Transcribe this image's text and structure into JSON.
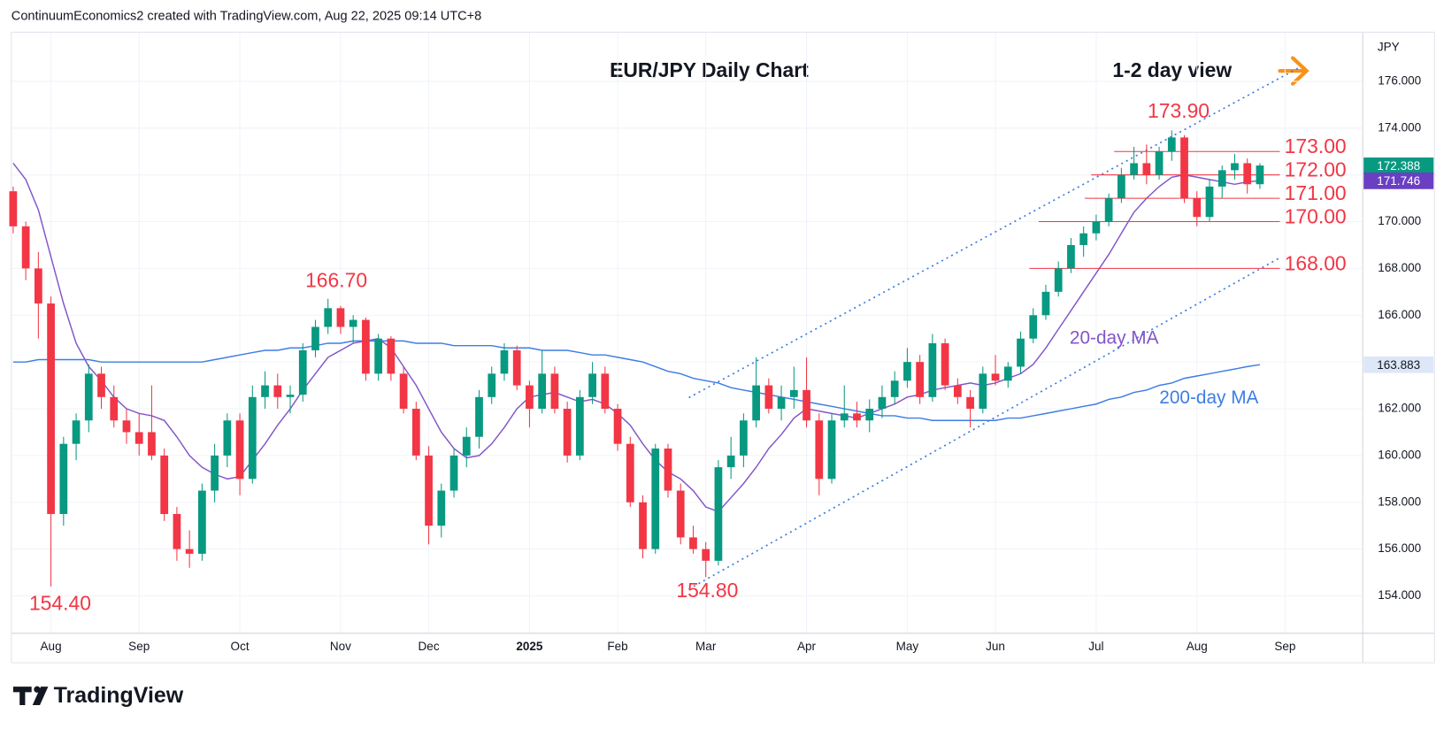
{
  "header": {
    "text": "ContinuumEconomics2 created with TradingView.com, Aug 22, 2025 09:14 UTC+8"
  },
  "brand": "TradingView",
  "chart_data": {
    "type": "candlestick",
    "title": "EUR/JPY Daily Chart",
    "subtitle": "1-2 day view",
    "y_axis_label": "JPY",
    "categories": [
      null,
      null,
      null,
      "Aug",
      null,
      null,
      null,
      null,
      null,
      null,
      "Sep",
      null,
      null,
      null,
      null,
      null,
      null,
      null,
      "Oct",
      null,
      null,
      null,
      null,
      null,
      null,
      null,
      "Nov",
      null,
      null,
      null,
      null,
      null,
      null,
      "Dec",
      null,
      null,
      null,
      null,
      null,
      null,
      null,
      "2025",
      null,
      null,
      null,
      null,
      null,
      null,
      "Feb",
      null,
      null,
      null,
      null,
      null,
      null,
      "Mar",
      null,
      null,
      null,
      null,
      null,
      null,
      null,
      "Apr",
      null,
      null,
      null,
      null,
      null,
      null,
      null,
      "May",
      null,
      null,
      null,
      null,
      null,
      null,
      "Jun",
      null,
      null,
      null,
      null,
      null,
      null,
      null,
      "Jul",
      null,
      null,
      null,
      null,
      null,
      null,
      null,
      "Aug",
      null,
      null,
      null,
      null,
      null,
      null,
      "Sep"
    ],
    "open": [
      171.3,
      169.8,
      168.0,
      166.5,
      157.5,
      160.5,
      161.5,
      163.5,
      162.5,
      161.5,
      161.0,
      161.0,
      160.0,
      157.5,
      156.0,
      155.8,
      158.5,
      160.0,
      161.5,
      159.0,
      162.5,
      163.0,
      162.5,
      162.6,
      164.5,
      165.5,
      166.3,
      165.5,
      165.8,
      163.5,
      165.0,
      163.5,
      162.0,
      160.0,
      157.0,
      158.5,
      160.0,
      160.8,
      162.5,
      163.5,
      164.5,
      163.0,
      162.0,
      163.5,
      162.0,
      160.0,
      162.5,
      163.5,
      162.0,
      160.5,
      158.0,
      156.0,
      160.3,
      158.5,
      156.5,
      156.0,
      155.5,
      159.5,
      160.0,
      161.5,
      163.0,
      162.0,
      162.5,
      162.8,
      161.5,
      159.0,
      161.5,
      161.8,
      161.5,
      162.0,
      162.5,
      163.2,
      164.0,
      162.5,
      164.8,
      163.0,
      162.5,
      162.0,
      163.5,
      163.2,
      163.8,
      165.0,
      166.0,
      167.0,
      168.0,
      169.0,
      169.5,
      170.0,
      171.0,
      172.0,
      172.5,
      172.0,
      173.0,
      173.6,
      171.0,
      170.2,
      171.5,
      172.2,
      172.5,
      171.6,
      null,
      null
    ],
    "high": [
      171.5,
      170.0,
      168.7,
      166.8,
      160.8,
      161.8,
      163.9,
      163.8,
      163.0,
      162.0,
      161.8,
      163.0,
      160.3,
      157.8,
      156.8,
      158.8,
      160.5,
      161.8,
      161.8,
      163.0,
      163.6,
      163.5,
      163.0,
      164.8,
      165.8,
      166.7,
      166.4,
      166.0,
      165.9,
      165.2,
      165.1,
      163.8,
      162.3,
      160.4,
      158.8,
      160.3,
      161.2,
      162.8,
      163.8,
      164.8,
      164.7,
      163.2,
      164.5,
      163.8,
      162.3,
      162.8,
      164.0,
      163.8,
      162.2,
      160.8,
      158.3,
      160.5,
      160.5,
      158.8,
      157.0,
      156.3,
      159.8,
      160.8,
      161.8,
      164.2,
      163.3,
      163.0,
      163.8,
      164.2,
      161.8,
      161.8,
      163.0,
      162.3,
      162.4,
      163.0,
      163.6,
      164.6,
      164.3,
      165.2,
      165.0,
      163.3,
      162.8,
      163.8,
      164.3,
      164.0,
      165.3,
      166.3,
      167.3,
      168.3,
      169.3,
      169.8,
      170.3,
      171.2,
      172.3,
      173.2,
      173.3,
      173.2,
      173.9,
      173.7,
      171.3,
      171.8,
      172.4,
      172.9,
      172.7,
      172.5,
      null,
      null
    ],
    "low": [
      169.5,
      167.5,
      165.0,
      154.4,
      157.0,
      159.8,
      161.0,
      162.0,
      161.2,
      160.5,
      160.0,
      159.8,
      157.2,
      155.5,
      155.2,
      155.5,
      158.0,
      159.5,
      158.3,
      158.8,
      162.0,
      162.0,
      161.8,
      162.3,
      164.2,
      165.2,
      165.2,
      164.8,
      163.2,
      163.2,
      163.2,
      161.8,
      159.8,
      156.2,
      156.5,
      158.2,
      159.5,
      160.3,
      162.2,
      163.2,
      162.8,
      161.2,
      161.8,
      161.8,
      159.7,
      159.8,
      162.2,
      161.8,
      160.2,
      157.8,
      155.6,
      155.8,
      158.2,
      156.2,
      155.8,
      154.8,
      155.3,
      159.0,
      159.5,
      161.2,
      161.8,
      161.5,
      162.0,
      161.2,
      158.3,
      158.8,
      161.2,
      161.2,
      161.0,
      161.6,
      162.2,
      162.9,
      162.2,
      162.3,
      162.8,
      162.2,
      161.2,
      161.8,
      163.0,
      162.9,
      163.5,
      164.8,
      165.8,
      166.8,
      167.8,
      168.5,
      169.2,
      169.8,
      170.8,
      171.8,
      171.6,
      171.8,
      172.6,
      170.8,
      169.8,
      170.0,
      171.0,
      171.8,
      171.2,
      171.4,
      null,
      null
    ],
    "close": [
      169.8,
      168.0,
      166.5,
      157.5,
      160.5,
      161.5,
      163.5,
      162.5,
      161.5,
      161.0,
      160.5,
      160.0,
      157.5,
      156.0,
      155.8,
      158.5,
      160.0,
      161.5,
      159.0,
      162.5,
      163.0,
      162.5,
      162.6,
      164.5,
      165.5,
      166.3,
      165.5,
      165.8,
      163.5,
      165.0,
      163.5,
      162.0,
      160.0,
      157.0,
      158.5,
      160.0,
      160.8,
      162.5,
      163.5,
      164.5,
      163.0,
      162.0,
      163.5,
      162.0,
      160.0,
      162.5,
      163.5,
      162.0,
      160.5,
      158.0,
      156.0,
      160.3,
      158.5,
      156.5,
      156.0,
      155.5,
      159.5,
      160.0,
      161.5,
      163.0,
      162.0,
      162.5,
      162.8,
      161.5,
      159.0,
      161.5,
      161.8,
      161.5,
      162.0,
      162.5,
      163.2,
      164.0,
      162.5,
      164.8,
      163.0,
      162.5,
      162.0,
      163.5,
      163.2,
      163.8,
      165.0,
      166.0,
      167.0,
      168.0,
      169.0,
      169.5,
      170.0,
      171.0,
      172.0,
      172.5,
      172.0,
      173.0,
      173.6,
      171.0,
      170.2,
      171.5,
      172.2,
      172.5,
      171.6,
      172.4,
      null,
      null
    ],
    "up_color": "#089981",
    "down_color": "#f23645",
    "series": [
      {
        "name": "20-day MA",
        "color": "#8255c9",
        "values": [
          172.5,
          171.8,
          170.5,
          168.5,
          166.5,
          164.8,
          163.8,
          163.2,
          162.5,
          162.0,
          161.8,
          161.7,
          161.5,
          160.8,
          160.0,
          159.5,
          159.2,
          159.0,
          159.1,
          159.8,
          160.5,
          161.3,
          162.0,
          162.8,
          163.5,
          164.2,
          164.5,
          164.8,
          164.9,
          165.0,
          164.6,
          163.8,
          163.0,
          162.0,
          161.0,
          160.3,
          159.9,
          160.0,
          160.5,
          161.2,
          162.0,
          162.5,
          162.6,
          162.7,
          162.5,
          162.3,
          162.4,
          162.2,
          161.8,
          161.3,
          160.5,
          159.8,
          159.3,
          159.0,
          158.5,
          157.8,
          157.6,
          158.2,
          158.8,
          159.5,
          160.3,
          160.9,
          161.6,
          162.0,
          161.9,
          161.8,
          161.7,
          161.6,
          161.8,
          162.0,
          162.2,
          162.5,
          162.6,
          162.8,
          162.9,
          163.0,
          163.1,
          163.0,
          163.1,
          163.3,
          163.5,
          163.9,
          164.6,
          165.4,
          166.2,
          167.0,
          167.8,
          168.6,
          169.5,
          170.4,
          171.0,
          171.5,
          171.9,
          172.0,
          171.9,
          171.8,
          171.7,
          171.6,
          171.7,
          171.746,
          null,
          null
        ]
      },
      {
        "name": "200-day MA",
        "color": "#3d7de3",
        "values": [
          164.0,
          164.0,
          164.1,
          164.1,
          164.1,
          164.1,
          164.1,
          164.0,
          164.0,
          164.0,
          164.0,
          164.0,
          164.0,
          164.0,
          164.0,
          164.0,
          164.1,
          164.2,
          164.3,
          164.4,
          164.5,
          164.5,
          164.6,
          164.6,
          164.7,
          164.8,
          164.8,
          164.9,
          164.9,
          164.9,
          164.9,
          164.9,
          164.8,
          164.8,
          164.8,
          164.7,
          164.7,
          164.7,
          164.7,
          164.6,
          164.6,
          164.6,
          164.5,
          164.5,
          164.5,
          164.4,
          164.3,
          164.3,
          164.2,
          164.1,
          164.0,
          163.8,
          163.6,
          163.5,
          163.3,
          163.2,
          163.1,
          162.9,
          162.8,
          162.7,
          162.6,
          162.5,
          162.4,
          162.3,
          162.2,
          162.1,
          162.0,
          161.9,
          161.8,
          161.7,
          161.7,
          161.6,
          161.6,
          161.5,
          161.5,
          161.5,
          161.5,
          161.5,
          161.5,
          161.6,
          161.6,
          161.7,
          161.8,
          161.9,
          162.0,
          162.1,
          162.2,
          162.4,
          162.5,
          162.7,
          162.8,
          163.0,
          163.1,
          163.3,
          163.4,
          163.5,
          163.6,
          163.7,
          163.8,
          163.883,
          null,
          null
        ]
      }
    ],
    "price_tags": [
      {
        "value": 172.388,
        "color": "#089981",
        "text_color": "#ffffff"
      },
      {
        "value": 171.746,
        "color": "#6a3fc2",
        "text_color": "#ffffff"
      },
      {
        "value": 163.883,
        "color": "#dde7f8",
        "text_color": "#131722"
      }
    ],
    "levels": [
      {
        "value": 173,
        "label": "173.00"
      },
      {
        "value": 172,
        "label": "172.00"
      },
      {
        "value": 171,
        "label": "171.00"
      },
      {
        "value": 170,
        "label": "170.00"
      },
      {
        "value": 168,
        "label": "168.00"
      }
    ],
    "annotations": [
      {
        "value": 173.9,
        "label": "173.90"
      },
      {
        "value": 166.7,
        "label": "166.70"
      },
      {
        "value": 154.4,
        "label": "154.40"
      },
      {
        "value": 154.8,
        "label": "154.80"
      }
    ],
    "ylim": [
      152.4,
      178.1
    ],
    "yticks": [
      {
        "value": 154,
        "label": "154.000"
      },
      {
        "value": 156,
        "label": "156.000"
      },
      {
        "value": 158,
        "label": "158.000"
      },
      {
        "value": 160,
        "label": "160.000"
      },
      {
        "value": 162,
        "label": "162.000"
      },
      {
        "value": 164,
        "label": "164.000"
      },
      {
        "value": 166,
        "label": "166.000"
      },
      {
        "value": 168,
        "label": "168.000"
      },
      {
        "value": 170,
        "label": "170.000"
      },
      {
        "value": 172,
        "label": "172.000"
      },
      {
        "value": 174,
        "label": "174.000"
      },
      {
        "value": 176,
        "label": "176.000"
      }
    ],
    "grid": true,
    "level_color": "#f23645"
  }
}
